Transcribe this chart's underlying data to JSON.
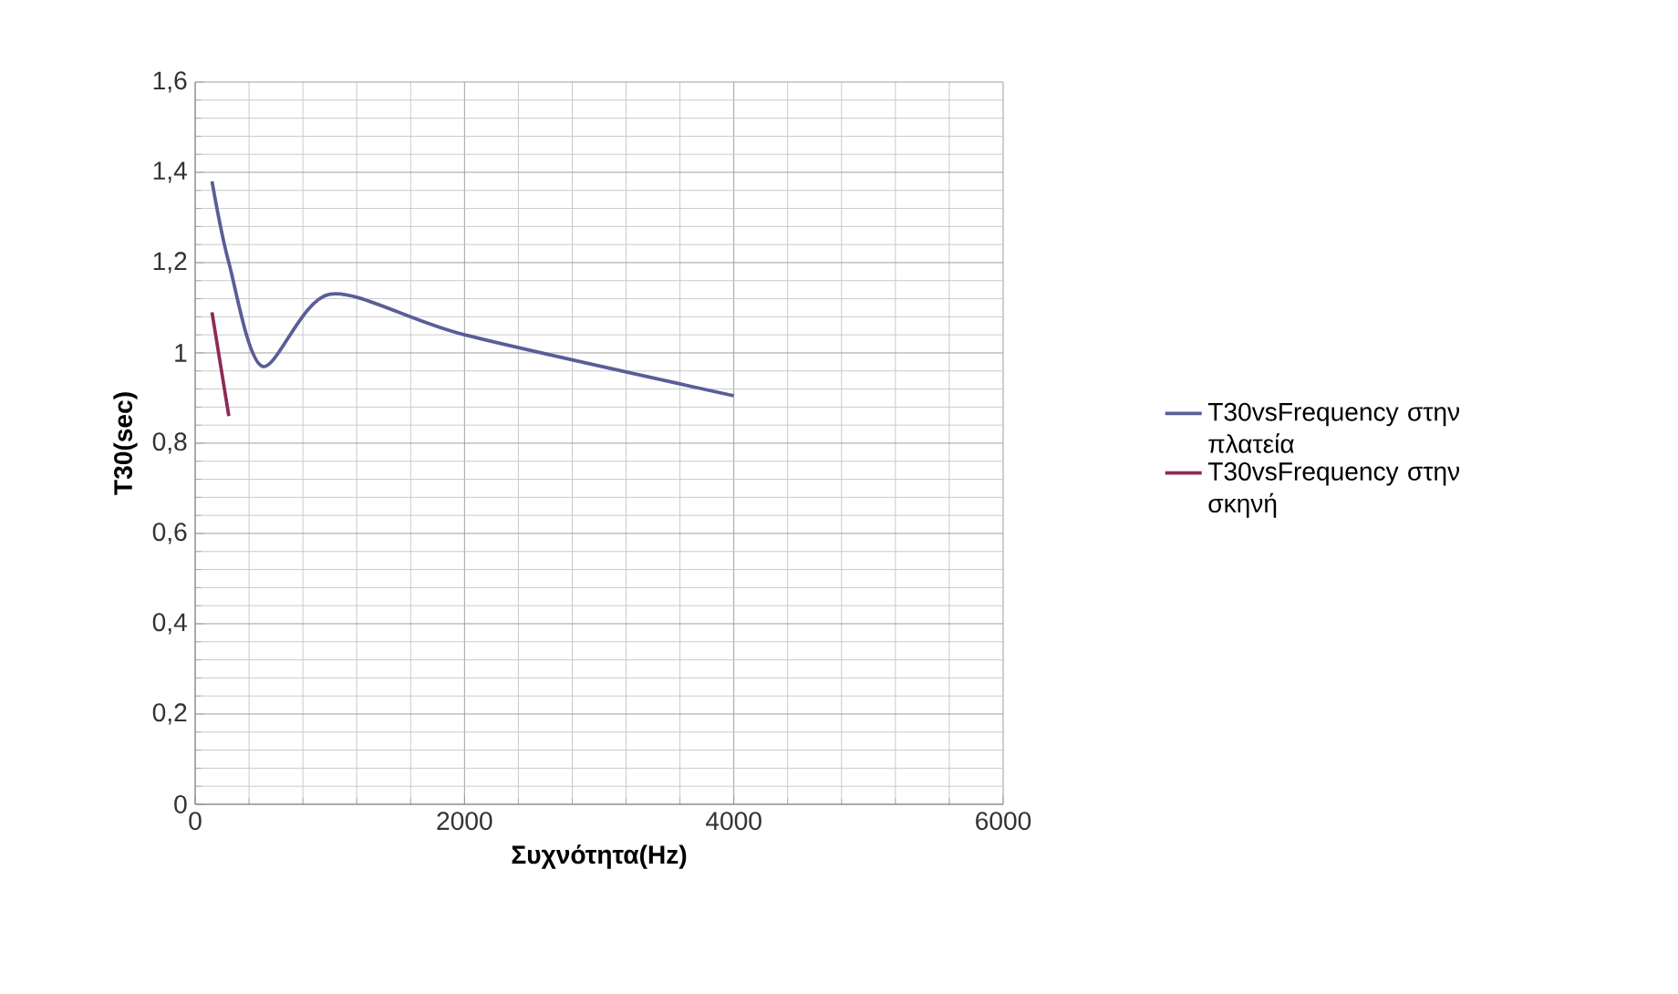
{
  "chart_data": {
    "type": "line",
    "xlabel": "Συχνότητα(Hz)",
    "ylabel": "T30(sec)",
    "xlim": [
      0,
      6000
    ],
    "xticks": [
      0,
      2000,
      4000,
      6000
    ],
    "ylim": [
      0,
      1.6
    ],
    "yticks": [
      {
        "value": 0,
        "label": "0"
      },
      {
        "value": 0.2,
        "label": "0,2"
      },
      {
        "value": 0.4,
        "label": "0,4"
      },
      {
        "value": 0.6,
        "label": "0,6"
      },
      {
        "value": 0.8,
        "label": "0,8"
      },
      {
        "value": 1,
        "label": "1"
      },
      {
        "value": 1.2,
        "label": "1,2"
      },
      {
        "value": 1.4,
        "label": "1,4"
      },
      {
        "value": 1.6,
        "label": "1,6"
      }
    ],
    "grid": true,
    "legend": "right",
    "marker": "none",
    "series": [
      {
        "name": "T30vsFrequency στην πλατεία",
        "color": "#5a5e96",
        "x": [
          125,
          250,
          500,
          1000,
          2000,
          4000
        ],
        "values": [
          1.38,
          1.2,
          0.97,
          1.13,
          1.04,
          0.905
        ]
      },
      {
        "name": "T30vsFrequency στην σκηνή",
        "color": "#8e2a55",
        "x": [
          125,
          250
        ],
        "values": [
          1.09,
          0.86
        ]
      }
    ]
  }
}
